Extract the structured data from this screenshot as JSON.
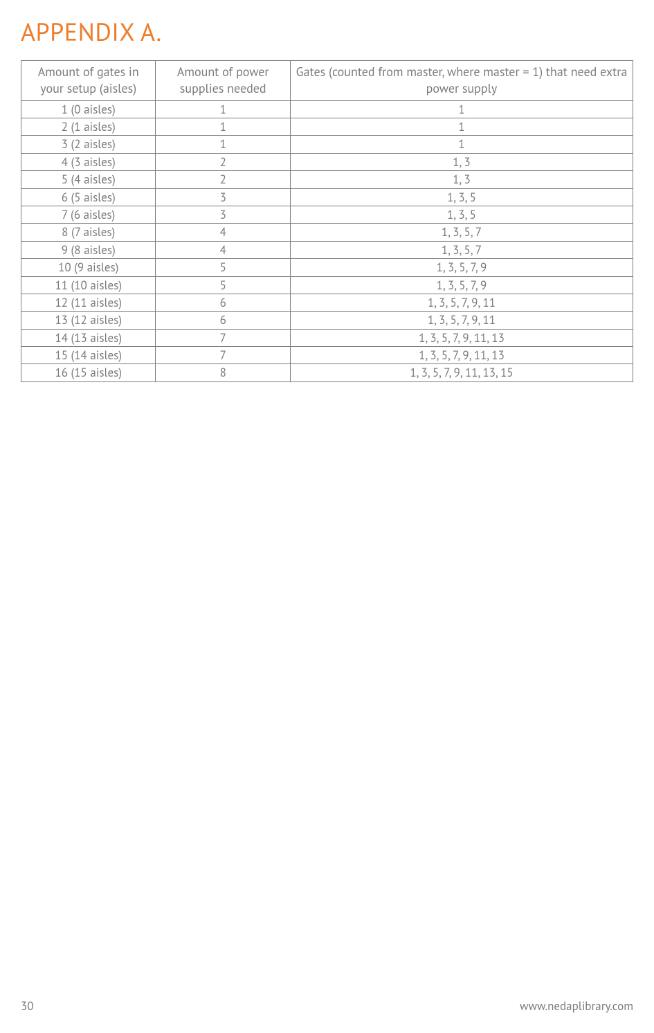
{
  "title": "APPENDIX A.",
  "table": {
    "columns": [
      "Amount of gates in your setup (aisles)",
      "Amount of power supplies needed",
      "Gates (counted from master, where master = 1) that need extra power supply"
    ],
    "rows": [
      [
        "1 (0 aisles)",
        "1",
        "1"
      ],
      [
        "2 (1 aisles)",
        "1",
        "1"
      ],
      [
        "3 (2 aisles)",
        "1",
        "1"
      ],
      [
        "4 (3 aisles)",
        "2",
        "1, 3"
      ],
      [
        "5 (4 aisles)",
        "2",
        "1, 3"
      ],
      [
        "6 (5 aisles)",
        "3",
        "1, 3, 5"
      ],
      [
        "7 (6 aisles)",
        "3",
        "1, 3, 5"
      ],
      [
        "8 (7 aisles)",
        "4",
        "1, 3, 5, 7"
      ],
      [
        "9 (8 aisles)",
        "4",
        "1, 3, 5, 7"
      ],
      [
        "10 (9 aisles)",
        "5",
        "1, 3, 5, 7, 9"
      ],
      [
        "11 (10 aisles)",
        "5",
        "1, 3, 5, 7, 9"
      ],
      [
        "12 (11 aisles)",
        "6",
        "1, 3, 5, 7, 9, 11"
      ],
      [
        "13 (12 aisles)",
        "6",
        "1, 3, 5, 7, 9, 11"
      ],
      [
        "14 (13 aisles)",
        "7",
        "1, 3, 5, 7, 9, 11, 13"
      ],
      [
        "15 (14 aisles)",
        "7",
        "1, 3, 5, 7, 9, 11, 13"
      ],
      [
        "16 (15 aisles)",
        "8",
        "1, 3, 5, 7, 9, 11, 13, 15"
      ]
    ]
  },
  "footer": {
    "page_number": "30",
    "url": "www.nedaplibrary.com"
  },
  "style": {
    "title_color": "#ed7d2b",
    "text_color": "#7a7a7a",
    "border_color": "#7a7a7a",
    "background_color": "#ffffff",
    "title_fontsize": 36,
    "header_fontsize": 18,
    "cell_fontsize": 17,
    "col_widths_pct": [
      22,
      22,
      56
    ]
  }
}
